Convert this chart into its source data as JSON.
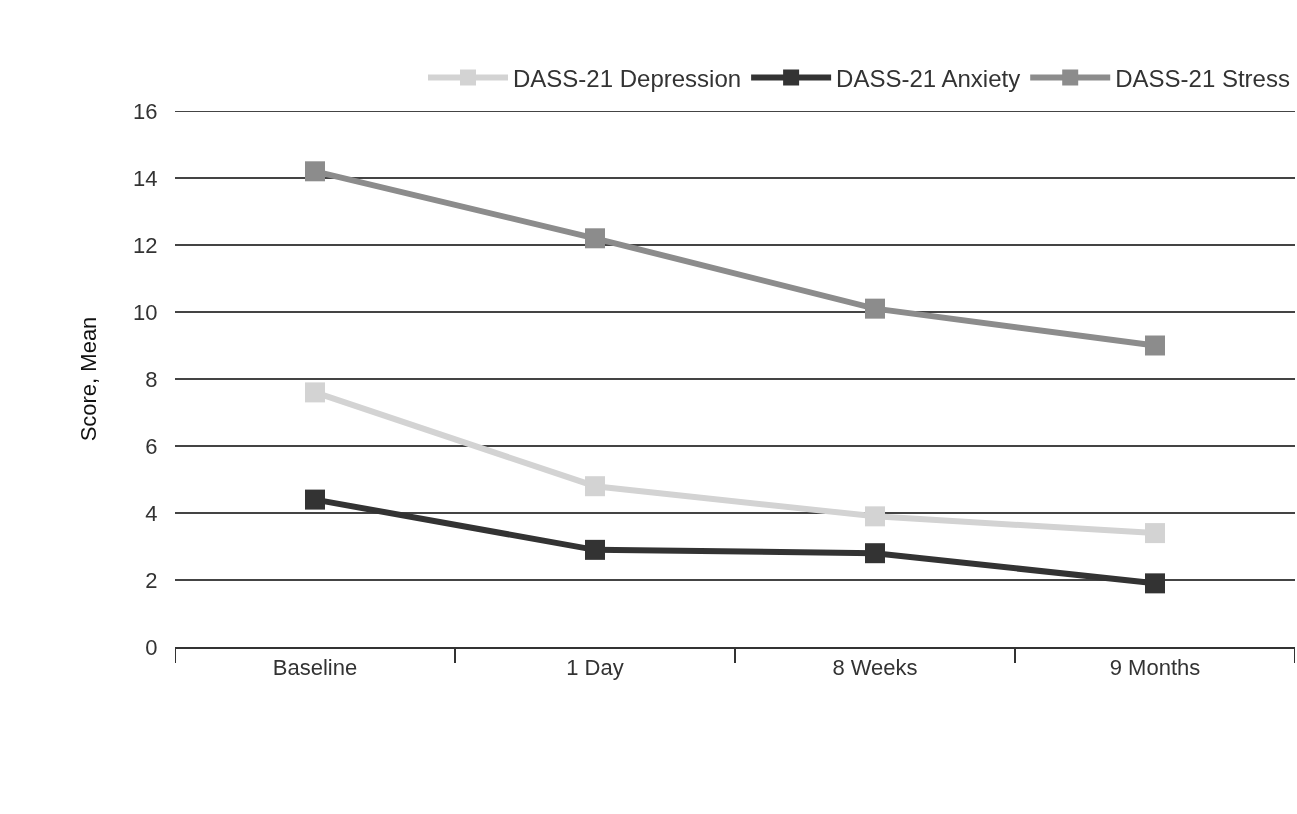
{
  "chart_data": {
    "type": "line",
    "ylabel": "Score, Mean",
    "categories": [
      "Baseline",
      "1 Day",
      "8 Weeks",
      "9 Months"
    ],
    "series": [
      {
        "name": "DASS-21 Depression",
        "color": "#d3d3d3",
        "values": [
          7.6,
          4.8,
          3.9,
          3.4
        ]
      },
      {
        "name": "DASS-21 Anxiety",
        "color": "#333333",
        "values": [
          4.4,
          2.9,
          2.8,
          1.9
        ]
      },
      {
        "name": "DASS-21 Stress",
        "color": "#8c8c8c",
        "values": [
          14.2,
          12.2,
          10.1,
          9.0
        ]
      }
    ],
    "ylim": [
      0,
      16
    ],
    "yticks": [
      0,
      2,
      4,
      6,
      8,
      10,
      12,
      14,
      16
    ],
    "grid": "y",
    "legend": "top",
    "marker": "square",
    "line_style": "solid"
  }
}
